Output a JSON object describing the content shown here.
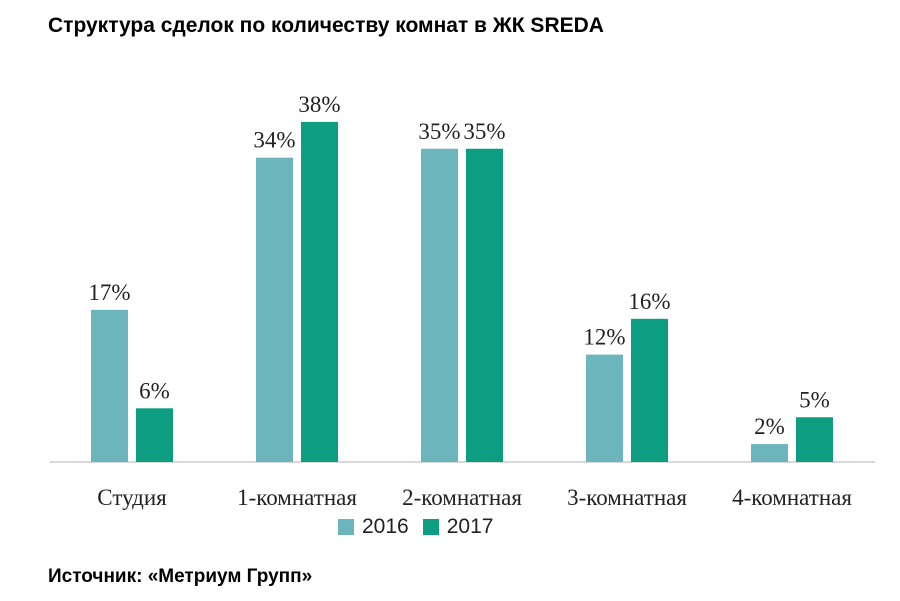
{
  "title": "Структура сделок по количеству комнат в ЖК SREDA",
  "source": "Источник: «Метриум Групп»",
  "colors": {
    "s2016": "#6cb5bd",
    "s2017": "#0d9e82",
    "axis": "#d9d9d9"
  },
  "legend": [
    {
      "label": "2016",
      "color": "#6cb5bd"
    },
    {
      "label": "2017",
      "color": "#0d9e82"
    }
  ],
  "chart_data": {
    "type": "bar",
    "title": "Структура сделок по количеству комнат в ЖК SREDA",
    "categories": [
      "Студия",
      "1-комнатная",
      "2-комнатная",
      "3-комнатная",
      "4-комнатная"
    ],
    "series": [
      {
        "name": "2016",
        "values": [
          17,
          34,
          35,
          12,
          2
        ],
        "labels": [
          "17%",
          "34%",
          "35%",
          "12%",
          "2%"
        ]
      },
      {
        "name": "2017",
        "values": [
          6,
          38,
          35,
          16,
          5
        ],
        "labels": [
          "6%",
          "38%",
          "35%",
          "16%",
          "5%"
        ]
      }
    ],
    "ylim": [
      0,
      40
    ],
    "grid": false,
    "legend_position": "bottom"
  }
}
